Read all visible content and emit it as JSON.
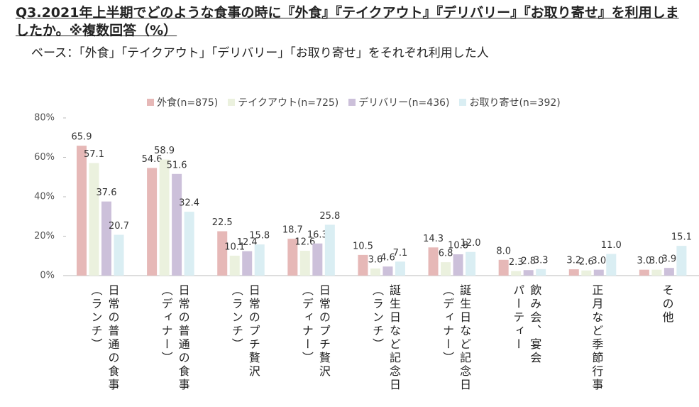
{
  "chart_data": {
    "type": "bar",
    "title": "Q3.2021年上半期でどのような食事の時に『外食』『テイクアウト』『デリバリー』『お取り寄せ』を利用しましたか。※複数回答（%）",
    "subtitle": "ベース：「外食」「テイクアウト」「デリバリー」「お取り寄せ」をそれぞれ利用した人",
    "categories": [
      [
        "日常の普通の食事",
        "（ランチ）"
      ],
      [
        "日常の普通の食事",
        "（ディナー）"
      ],
      [
        "日常のプチ贅沢",
        "（ランチ）"
      ],
      [
        "日常のプチ贅沢",
        "（ディナー）"
      ],
      [
        "誕生日など記念日",
        "（ランチ）"
      ],
      [
        "誕生日など記念日",
        "（ディナー）"
      ],
      [
        "飲み会、宴会",
        "パーティー"
      ],
      [
        "正月など季節行事"
      ],
      [
        "その他"
      ]
    ],
    "series": [
      {
        "name": "外食(n=875)",
        "color": "#e6b8b7",
        "values": [
          65.9,
          54.6,
          22.5,
          18.7,
          10.5,
          14.3,
          8.0,
          3.2,
          3.0
        ],
        "value_labels": [
          "65.9",
          "54.6",
          "22.5",
          "18.7",
          "10.5",
          "14.3",
          "8.0",
          "3.2",
          "3.0"
        ]
      },
      {
        "name": "テイクアウト(n=725)",
        "color": "#ebf1de",
        "values": [
          57.1,
          58.9,
          10.1,
          12.6,
          3.6,
          6.8,
          2.3,
          2.6,
          3.0
        ],
        "value_labels": [
          "57.1",
          "58.9",
          "10.1",
          "12.6",
          "3.6",
          "6.8",
          "2.3",
          "2.6",
          "3.0"
        ]
      },
      {
        "name": "デリバリー(n=436)",
        "color": "#ccc0da",
        "values": [
          37.6,
          51.6,
          12.4,
          16.3,
          4.6,
          10.8,
          2.8,
          3.0,
          3.9
        ],
        "value_labels": [
          "37.6",
          "51.6",
          "12.4",
          "16.3",
          "4.6",
          "10.8",
          "2.8",
          "3.0",
          "3.9"
        ]
      },
      {
        "name": "お取り寄せ(n=392)",
        "color": "#daeef3",
        "values": [
          20.7,
          32.4,
          15.8,
          25.8,
          7.1,
          12.0,
          3.3,
          11.0,
          15.1
        ],
        "value_labels": [
          "20.7",
          "32.4",
          "15.8",
          "25.8",
          "7.1",
          "12.0",
          "3.3",
          "11.0",
          "15.1"
        ]
      }
    ],
    "ylim": [
      0,
      80
    ],
    "yticks": [
      {
        "value": 0,
        "label": "0%"
      },
      {
        "value": 20,
        "label": "20%"
      },
      {
        "value": 40,
        "label": "40%"
      },
      {
        "value": 60,
        "label": "60%"
      },
      {
        "value": 80,
        "label": "80%"
      }
    ],
    "grid": false
  }
}
